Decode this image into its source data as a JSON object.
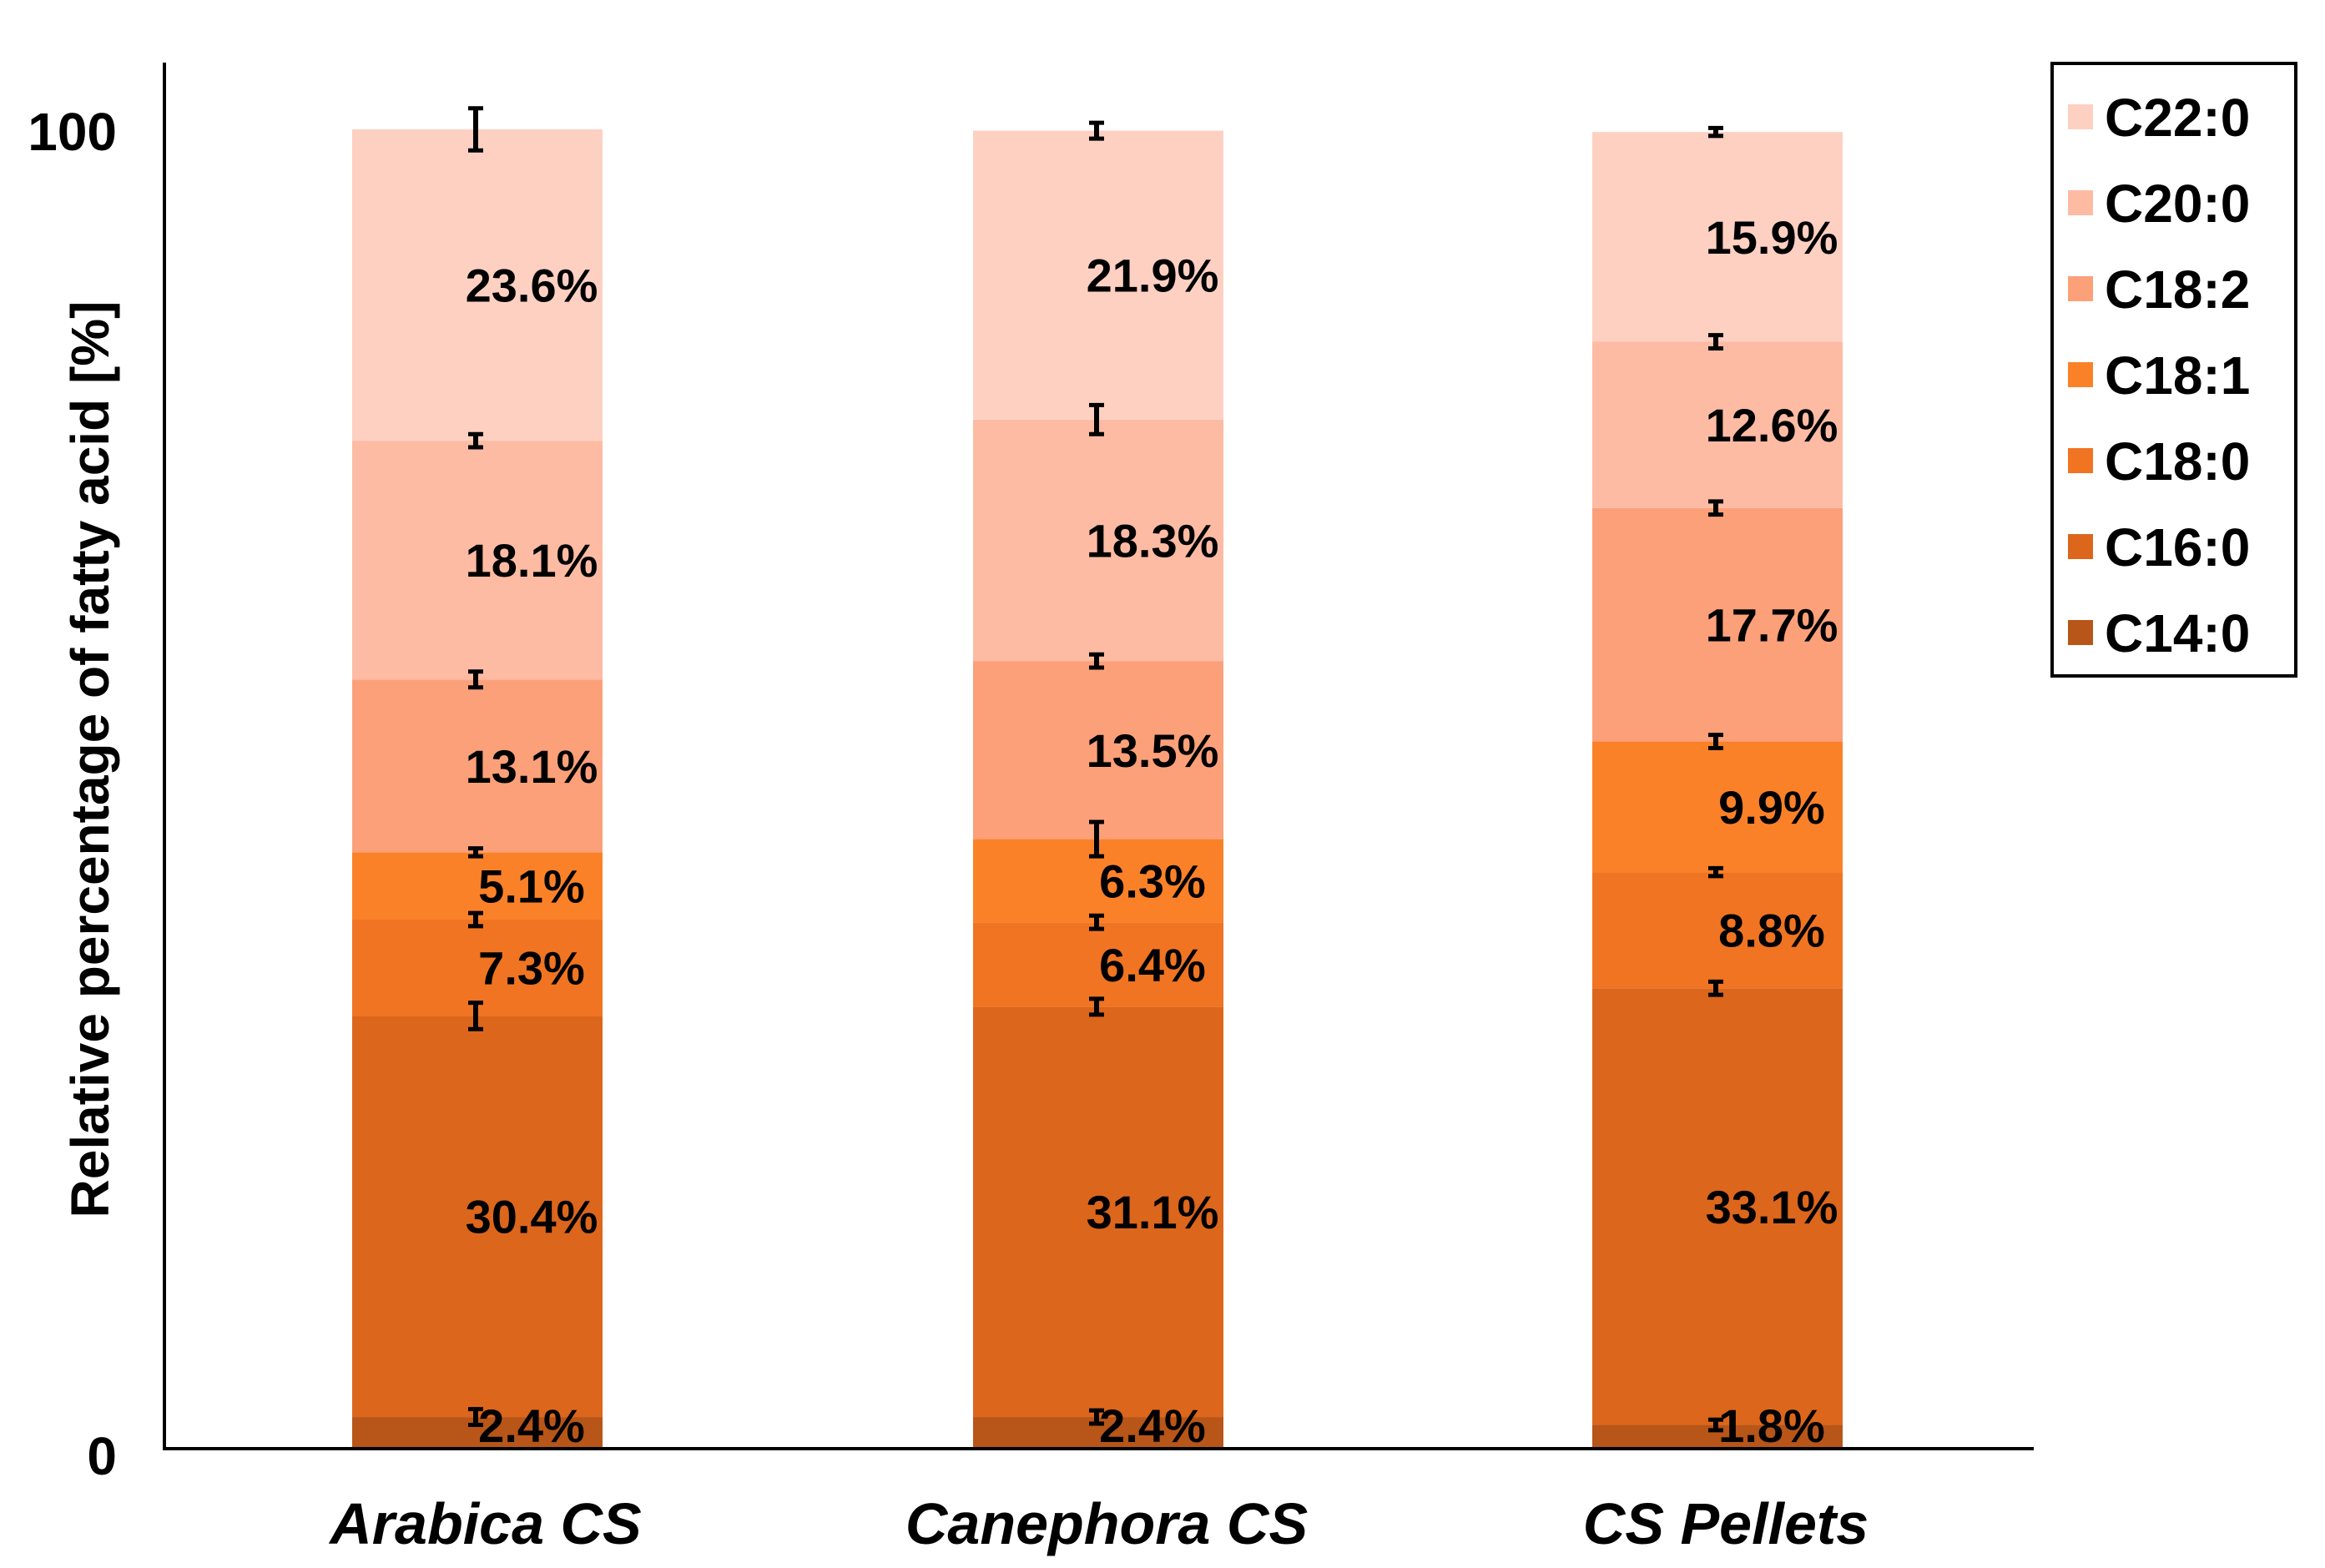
{
  "chart_data": {
    "type": "bar",
    "stacked": true,
    "title": "",
    "xlabel": "",
    "ylabel": "Relative percentage of fatty acid [%]",
    "ylim": [
      0,
      100
    ],
    "yticks": [
      "0",
      "100"
    ],
    "categories": [
      "Arabica CS",
      "Canephora CS",
      "CS Pellets"
    ],
    "legend_position": "top-right",
    "series": [
      {
        "name": "C14:0",
        "color": "#b85518",
        "values": [
          2.4,
          2.4,
          1.8
        ],
        "labels": [
          "2.4%",
          "2.4%",
          "1.8%"
        ],
        "errors": [
          0.6,
          0.5,
          0.4
        ]
      },
      {
        "name": "C16:0",
        "color": "#dc661c",
        "values": [
          30.4,
          31.1,
          33.1
        ],
        "labels": [
          "30.4%",
          "31.1%",
          "33.1%"
        ],
        "errors": [
          1.0,
          0.6,
          0.5
        ]
      },
      {
        "name": "C18:0",
        "color": "#f07422",
        "values": [
          7.3,
          6.4,
          8.8
        ],
        "labels": [
          "7.3%",
          "6.4%",
          "8.8%"
        ],
        "errors": [
          0.5,
          0.5,
          0.3
        ]
      },
      {
        "name": "C18:1",
        "color": "#fb8129",
        "values": [
          5.1,
          6.3,
          9.9
        ],
        "labels": [
          "5.1%",
          "6.3%",
          "9.9%"
        ],
        "errors": [
          0.3,
          1.3,
          0.5
        ]
      },
      {
        "name": "C18:2",
        "color": "#fca07a",
        "values": [
          13.1,
          13.5,
          17.7
        ],
        "labels": [
          "13.1%",
          "13.5%",
          "17.7%"
        ],
        "errors": [
          0.6,
          0.5,
          0.5
        ]
      },
      {
        "name": "C20:0",
        "color": "#fdbba4",
        "values": [
          18.1,
          18.3,
          12.6
        ],
        "labels": [
          "18.1%",
          "18.3%",
          "12.6%"
        ],
        "errors": [
          0.5,
          1.1,
          0.5
        ]
      },
      {
        "name": "C22:0",
        "color": "#fdd0c2",
        "values": [
          23.6,
          21.9,
          15.9
        ],
        "labels": [
          "23.6%",
          "21.9%",
          "15.9%"
        ],
        "errors": [
          1.6,
          0.6,
          0.3
        ]
      }
    ]
  }
}
